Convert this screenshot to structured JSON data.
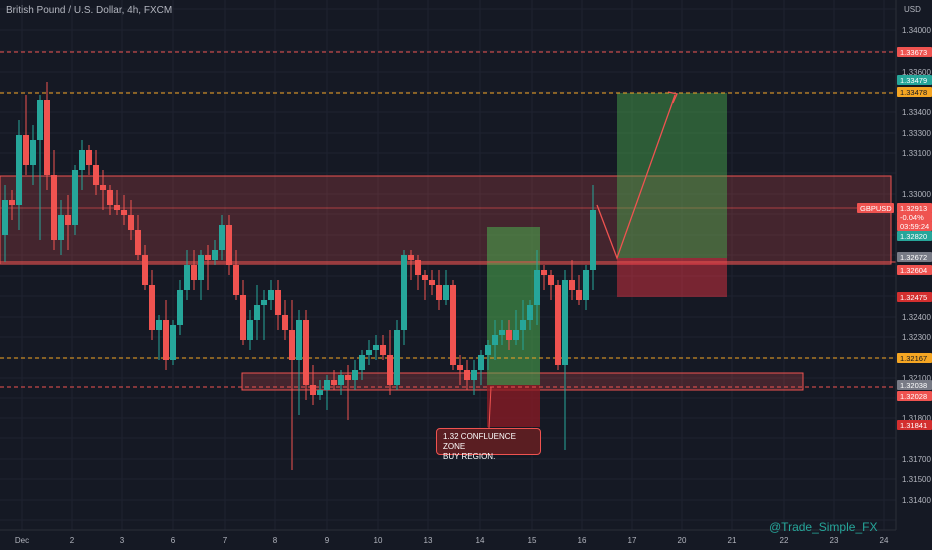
{
  "header": {
    "title": "British Pound / U.S. Dollar, 4h, FXCM",
    "currency": "USD"
  },
  "watermark": "@Trade_Simple_FX",
  "annotation": {
    "line1": "1.32 CONFLUENCE ZONE",
    "line2": "BUY REGION."
  },
  "symbol_badge": "GBPUSD",
  "price_axis": {
    "ticks": [
      "1.34000",
      "1.33800",
      "1.33600",
      "1.33400",
      "1.33300",
      "1.33100",
      "1.33000",
      "1.32900",
      "1.32700",
      "1.32400",
      "1.32300",
      "1.32200",
      "1.32100",
      "1.31900",
      "1.31800",
      "1.31700",
      "1.31500",
      "1.31400"
    ],
    "labels": [
      {
        "text": "1.33673",
        "bg": "#ef5350",
        "fg": "#ffffff"
      },
      {
        "text": "1.33479",
        "bg": "#26a69a",
        "fg": "#ffffff"
      },
      {
        "text": "1.33478",
        "bg": "#f5a623",
        "fg": "#131722"
      },
      {
        "text": "1.32913",
        "bg": "#ef5350",
        "fg": "#ffffff"
      },
      {
        "text": "-0.04%",
        "bg": "#ef5350",
        "fg": "#ffffff"
      },
      {
        "text": "03:59:24",
        "bg": "#ef5350",
        "fg": "#ffffff"
      },
      {
        "text": "1.32820",
        "bg": "#26a69a",
        "fg": "#ffffff"
      },
      {
        "text": "1.32672",
        "bg": "#787b86",
        "fg": "#ffffff"
      },
      {
        "text": "1.32604",
        "bg": "#ef5350",
        "fg": "#ffffff"
      },
      {
        "text": "1.32475",
        "bg": "#d32f2f",
        "fg": "#ffffff"
      },
      {
        "text": "1.32167",
        "bg": "#f5a623",
        "fg": "#131722"
      },
      {
        "text": "1.32038",
        "bg": "#787b86",
        "fg": "#ffffff"
      },
      {
        "text": "1.32028",
        "bg": "#ef5350",
        "fg": "#ffffff"
      },
      {
        "text": "1.31841",
        "bg": "#d32f2f",
        "fg": "#ffffff"
      }
    ]
  },
  "time_axis": [
    "Dec",
    "2",
    "3",
    "6",
    "7",
    "8",
    "9",
    "10",
    "13",
    "14",
    "15",
    "16",
    "17",
    "20",
    "21",
    "22",
    "23",
    "24"
  ],
  "colors": {
    "bull": "#26a69a",
    "bear": "#ef5350",
    "resistance_zone": "#ef5350",
    "support_zone": "#ef5350",
    "long_target": "#4caf50",
    "long_stop": "#f23645",
    "levels": "#f5a623"
  }
}
